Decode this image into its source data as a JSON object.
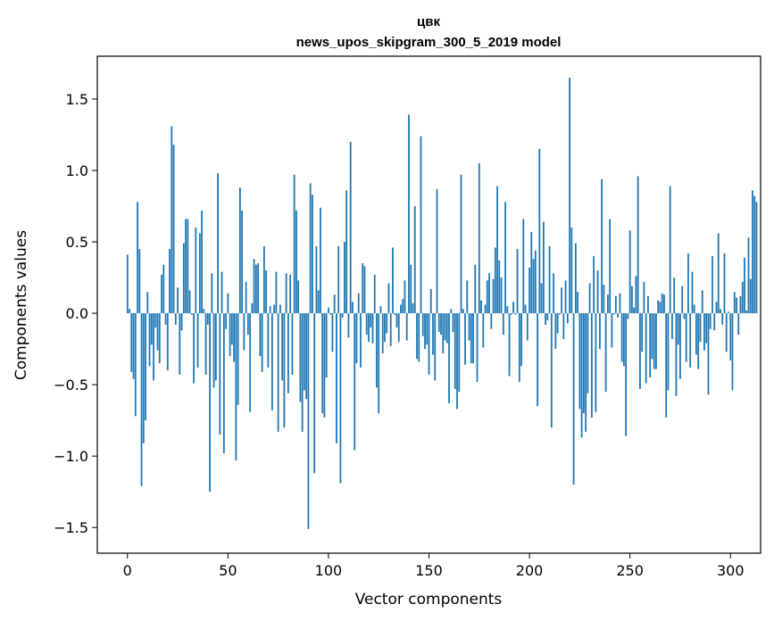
{
  "chart_data": {
    "type": "bar",
    "title": "цвк",
    "subtitle": "news_upos_skipgram_300_5_2019 model",
    "xlabel": "Vector components",
    "ylabel": "Components values",
    "xlim": [
      -15,
      315
    ],
    "ylim": [
      -1.68,
      1.8
    ],
    "xticks": [
      0,
      50,
      100,
      150,
      200,
      250,
      300
    ],
    "yticks": [
      1.5,
      1.0,
      0.5,
      0.0,
      -0.5,
      -1.0,
      -1.5
    ],
    "ytick_labels": [
      "1.5",
      "1.0",
      "0.5",
      "0.0",
      "−0.5",
      "−1.0",
      "−1.5"
    ],
    "bar_color": "#1f77b4",
    "grid": false,
    "values": [
      0.41,
      0.03,
      -0.41,
      -0.46,
      -0.72,
      0.78,
      0.45,
      -1.21,
      -0.91,
      -0.75,
      0.15,
      -0.37,
      -0.22,
      -0.47,
      -0.1,
      -0.26,
      -0.35,
      0.27,
      0.34,
      -0.08,
      -0.4,
      0.45,
      1.31,
      1.18,
      -0.08,
      0.18,
      -0.43,
      -0.12,
      0.49,
      0.66,
      0.66,
      0.16,
      -0.01,
      -0.49,
      0.6,
      -0.38,
      0.56,
      0.72,
      0.03,
      -0.43,
      -0.08,
      -1.25,
      0.28,
      -0.52,
      -0.47,
      0.98,
      -0.85,
      0.29,
      -0.98,
      -0.11,
      0.14,
      -0.3,
      -0.22,
      -0.34,
      -1.03,
      -0.64,
      0.88,
      0.72,
      -0.26,
      0.22,
      -0.15,
      -0.69,
      0.07,
      0.38,
      0.34,
      0.35,
      -0.3,
      -0.41,
      0.47,
      0.3,
      -0.38,
      0.05,
      -0.68,
      0.06,
      0.29,
      -0.83,
      0.06,
      -0.47,
      -0.8,
      0.28,
      -0.56,
      0.27,
      -0.43,
      0.97,
      0.72,
      0.23,
      -0.62,
      -0.83,
      -0.54,
      -0.6,
      -1.51,
      0.91,
      0.83,
      -1.12,
      0.47,
      0.16,
      0.74,
      -0.7,
      -0.73,
      -0.45,
      0.04,
      -0.01,
      -0.27,
      0.13,
      -0.91,
      0.47,
      -1.19,
      -0.03,
      0.5,
      0.86,
      -0.17,
      1.2,
      0.08,
      -0.96,
      -0.35,
      0.14,
      -0.38,
      0.35,
      0.33,
      -0.15,
      -0.2,
      -0.1,
      -0.21,
      0.27,
      -0.52,
      -0.7,
      0.05,
      -0.28,
      -0.2,
      -0.14,
      0.21,
      -0.23,
      0.46,
      -0.01,
      -0.1,
      -0.2,
      0.06,
      0.1,
      0.23,
      -0.19,
      1.39,
      0.34,
      0.07,
      0.75,
      -0.32,
      -0.34,
      1.24,
      -0.16,
      -0.25,
      -0.22,
      -0.43,
      0.17,
      -0.29,
      -0.47,
      0.87,
      -0.13,
      -0.15,
      -0.28,
      -0.19,
      -0.21,
      -0.63,
      0.03,
      -0.13,
      -0.53,
      -0.67,
      -0.55,
      0.97,
      0.03,
      -0.36,
      0.23,
      -0.19,
      -0.35,
      -0.35,
      0.34,
      -0.48,
      1.05,
      0.09,
      -0.24,
      0.06,
      0.23,
      0.28,
      -0.11,
      0.24,
      0.46,
      0.89,
      0.37,
      0.25,
      -0.15,
      0.78,
      0.05,
      -0.44,
      -0.01,
      0.08,
      -0.01,
      0.45,
      -0.48,
      -0.37,
      0.66,
      0.06,
      -0.19,
      0.32,
      0.57,
      0.38,
      0.44,
      -0.65,
      1.15,
      0.21,
      0.64,
      -0.08,
      -0.05,
      0.47,
      -0.8,
      0.28,
      -0.25,
      -0.14,
      -0.01,
      0.18,
      -0.18,
      0.23,
      -0.07,
      1.65,
      0.6,
      -1.2,
      0.49,
      0.15,
      -0.67,
      -0.87,
      -0.7,
      -0.83,
      -0.56,
      0.21,
      -0.73,
      0.4,
      -0.69,
      0.3,
      -0.25,
      0.94,
      0.2,
      -0.55,
      0.13,
      0.66,
      -0.24,
      -0.01,
      0.12,
      -0.03,
      0.14,
      -0.34,
      -0.37,
      -0.86,
      -0.04,
      0.58,
      0.19,
      0.04,
      0.26,
      0.96,
      -0.53,
      -0.27,
      0.22,
      -0.49,
      0.12,
      -0.45,
      -0.32,
      -0.39,
      -0.39,
      0.09,
      0.08,
      0.14,
      0.13,
      -0.73,
      -0.54,
      0.89,
      -0.18,
      0.25,
      -0.58,
      -0.22,
      -0.46,
      0.19,
      -0.04,
      -0.34,
      0.42,
      -0.38,
      0.29,
      0.06,
      -0.29,
      -0.39,
      -0.2,
      0.16,
      -0.26,
      -0.21,
      -0.57,
      -0.11,
      0.4,
      -0.12,
      0.08,
      0.56,
      0.03,
      -0.08,
      0.42,
      -0.27,
      0.01,
      -0.33,
      -0.54,
      0.15,
      0.11,
      -0.15,
      0.12,
      0.22,
      0.39,
      0.02,
      0.53,
      0.24,
      0.86,
      0.82,
      0.78
    ]
  }
}
